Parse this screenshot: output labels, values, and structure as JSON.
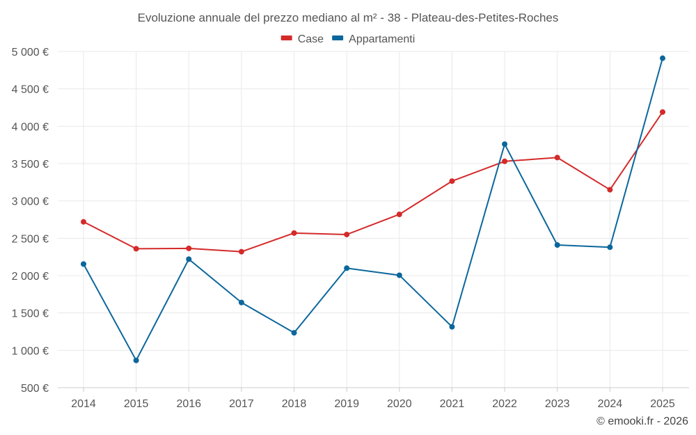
{
  "chart_data": {
    "type": "line",
    "title": "Evoluzione annuale del prezzo mediano al m² - 38 - Plateau-des-Petites-Roches",
    "categories": [
      "2014",
      "2015",
      "2016",
      "2017",
      "2018",
      "2019",
      "2020",
      "2021",
      "2022",
      "2023",
      "2024",
      "2025"
    ],
    "series": [
      {
        "name": "Case",
        "color": "#d42a2a",
        "values": [
          2720,
          2360,
          2365,
          2320,
          2570,
          2550,
          2820,
          3265,
          3530,
          3580,
          3150,
          4190
        ]
      },
      {
        "name": "Appartamenti",
        "color": "#0b679b",
        "values": [
          2155,
          865,
          2220,
          1640,
          1235,
          2100,
          2005,
          1315,
          3760,
          2410,
          2380,
          4910
        ]
      }
    ],
    "ylim": [
      500,
      5000
    ],
    "yticks": [
      500,
      1000,
      1500,
      2000,
      2500,
      3000,
      3500,
      4000,
      4500,
      5000
    ],
    "ytick_labels": [
      "500 €",
      "1 000 €",
      "1 500 €",
      "2 000 €",
      "2 500 €",
      "3 000 €",
      "3 500 €",
      "4 000 €",
      "4 500 €",
      "5 000 €"
    ],
    "grid": true,
    "legend": "top-center",
    "xlabel": "",
    "ylabel": ""
  },
  "credit": "© emooki.fr - 2026"
}
